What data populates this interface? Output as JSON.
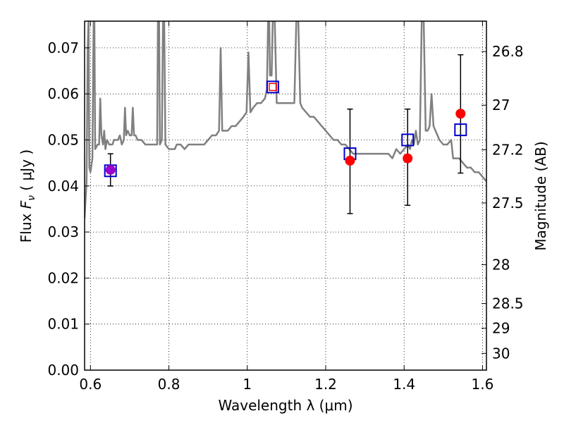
{
  "chart_data": {
    "type": "scatter",
    "title": "",
    "xlabel": "Wavelength  λ (μm)",
    "ylabel": "Flux  F_ν ( μJy )",
    "y2label": "Magnitude (AB)",
    "xlim": [
      0.585,
      1.61
    ],
    "ylim": [
      0.0,
      0.0758
    ],
    "grid": true,
    "grid_style": "dotted",
    "x_ticks": [
      {
        "value": 0.6,
        "label": "0.6"
      },
      {
        "value": 0.8,
        "label": "0.8"
      },
      {
        "value": 1.0,
        "label": "1"
      },
      {
        "value": 1.2,
        "label": "1.2"
      },
      {
        "value": 1.4,
        "label": "1.4"
      },
      {
        "value": 1.6,
        "label": "1.6"
      }
    ],
    "y_ticks": [
      {
        "value": 0.0,
        "label": "0.00"
      },
      {
        "value": 0.01,
        "label": "0.01"
      },
      {
        "value": 0.02,
        "label": "0.02"
      },
      {
        "value": 0.03,
        "label": "0.03"
      },
      {
        "value": 0.04,
        "label": "0.04"
      },
      {
        "value": 0.05,
        "label": "0.05"
      },
      {
        "value": 0.06,
        "label": "0.06"
      },
      {
        "value": 0.07,
        "label": "0.07"
      }
    ],
    "y2_ticks": [
      {
        "value": 26.8,
        "label": "26.8"
      },
      {
        "value": 27.0,
        "label": "27"
      },
      {
        "value": 27.2,
        "label": "27.2"
      },
      {
        "value": 27.5,
        "label": "27.5"
      },
      {
        "value": 28.0,
        "label": "28"
      },
      {
        "value": 28.5,
        "label": "28.5"
      },
      {
        "value": 29.0,
        "label": "29"
      },
      {
        "value": 30.0,
        "label": "30"
      }
    ],
    "colors": {
      "spectrum": "#808080",
      "observed": "#ff0000",
      "model": "#0000cc",
      "model_highlight": "#ff0000",
      "overlap": "#9900cc",
      "errorbar": "#000000"
    },
    "spectrum": [
      [
        0.585,
        0.033
      ],
      [
        0.59,
        0.041
      ],
      [
        0.593,
        0.07
      ],
      [
        0.595,
        0.076
      ],
      [
        0.597,
        0.044
      ],
      [
        0.6,
        0.043
      ],
      [
        0.605,
        0.046
      ],
      [
        0.608,
        0.076
      ],
      [
        0.61,
        0.076
      ],
      [
        0.612,
        0.048
      ],
      [
        0.618,
        0.049
      ],
      [
        0.622,
        0.049
      ],
      [
        0.625,
        0.059
      ],
      [
        0.628,
        0.051
      ],
      [
        0.632,
        0.049
      ],
      [
        0.635,
        0.052
      ],
      [
        0.638,
        0.048
      ],
      [
        0.642,
        0.05
      ],
      [
        0.648,
        0.049
      ],
      [
        0.652,
        0.049
      ],
      [
        0.656,
        0.049
      ],
      [
        0.66,
        0.05
      ],
      [
        0.665,
        0.05
      ],
      [
        0.67,
        0.05
      ],
      [
        0.675,
        0.051
      ],
      [
        0.68,
        0.049
      ],
      [
        0.685,
        0.05
      ],
      [
        0.688,
        0.057
      ],
      [
        0.691,
        0.051
      ],
      [
        0.695,
        0.052
      ],
      [
        0.7,
        0.051
      ],
      [
        0.705,
        0.051
      ],
      [
        0.708,
        0.057
      ],
      [
        0.711,
        0.051
      ],
      [
        0.715,
        0.051
      ],
      [
        0.72,
        0.05
      ],
      [
        0.73,
        0.05
      ],
      [
        0.74,
        0.049
      ],
      [
        0.75,
        0.049
      ],
      [
        0.76,
        0.049
      ],
      [
        0.77,
        0.049
      ],
      [
        0.772,
        0.076
      ],
      [
        0.775,
        0.076
      ],
      [
        0.777,
        0.049
      ],
      [
        0.782,
        0.05
      ],
      [
        0.785,
        0.076
      ],
      [
        0.788,
        0.076
      ],
      [
        0.791,
        0.049
      ],
      [
        0.8,
        0.048
      ],
      [
        0.81,
        0.048
      ],
      [
        0.815,
        0.048
      ],
      [
        0.82,
        0.049
      ],
      [
        0.83,
        0.049
      ],
      [
        0.84,
        0.048
      ],
      [
        0.85,
        0.049
      ],
      [
        0.86,
        0.049
      ],
      [
        0.87,
        0.049
      ],
      [
        0.88,
        0.049
      ],
      [
        0.89,
        0.049
      ],
      [
        0.9,
        0.05
      ],
      [
        0.91,
        0.051
      ],
      [
        0.92,
        0.051
      ],
      [
        0.928,
        0.052
      ],
      [
        0.932,
        0.07
      ],
      [
        0.936,
        0.052
      ],
      [
        0.94,
        0.052
      ],
      [
        0.95,
        0.052
      ],
      [
        0.96,
        0.053
      ],
      [
        0.97,
        0.053
      ],
      [
        0.98,
        0.054
      ],
      [
        0.99,
        0.055
      ],
      [
        0.998,
        0.056
      ],
      [
        1.003,
        0.069
      ],
      [
        1.008,
        0.056
      ],
      [
        1.015,
        0.057
      ],
      [
        1.025,
        0.058
      ],
      [
        1.035,
        0.058
      ],
      [
        1.045,
        0.059
      ],
      [
        1.05,
        0.061
      ],
      [
        1.053,
        0.076
      ],
      [
        1.056,
        0.076
      ],
      [
        1.058,
        0.064
      ],
      [
        1.062,
        0.064
      ],
      [
        1.065,
        0.076
      ],
      [
        1.07,
        0.076
      ],
      [
        1.075,
        0.058
      ],
      [
        1.085,
        0.058
      ],
      [
        1.095,
        0.058
      ],
      [
        1.105,
        0.058
      ],
      [
        1.115,
        0.058
      ],
      [
        1.12,
        0.058
      ],
      [
        1.125,
        0.076
      ],
      [
        1.13,
        0.076
      ],
      [
        1.135,
        0.058
      ],
      [
        1.14,
        0.057
      ],
      [
        1.15,
        0.056
      ],
      [
        1.16,
        0.055
      ],
      [
        1.17,
        0.055
      ],
      [
        1.18,
        0.054
      ],
      [
        1.19,
        0.053
      ],
      [
        1.2,
        0.052
      ],
      [
        1.21,
        0.051
      ],
      [
        1.22,
        0.05
      ],
      [
        1.23,
        0.05
      ],
      [
        1.24,
        0.049
      ],
      [
        1.25,
        0.049
      ],
      [
        1.26,
        0.048
      ],
      [
        1.27,
        0.047
      ],
      [
        1.28,
        0.047
      ],
      [
        1.29,
        0.047
      ],
      [
        1.3,
        0.047
      ],
      [
        1.31,
        0.047
      ],
      [
        1.32,
        0.047
      ],
      [
        1.33,
        0.047
      ],
      [
        1.34,
        0.047
      ],
      [
        1.35,
        0.047
      ],
      [
        1.36,
        0.047
      ],
      [
        1.37,
        0.046
      ],
      [
        1.38,
        0.048
      ],
      [
        1.39,
        0.047
      ],
      [
        1.4,
        0.048
      ],
      [
        1.41,
        0.049
      ],
      [
        1.415,
        0.048
      ],
      [
        1.42,
        0.05
      ],
      [
        1.425,
        0.049
      ],
      [
        1.43,
        0.052
      ],
      [
        1.435,
        0.049
      ],
      [
        1.44,
        0.05
      ],
      [
        1.445,
        0.076
      ],
      [
        1.45,
        0.076
      ],
      [
        1.455,
        0.052
      ],
      [
        1.46,
        0.052
      ],
      [
        1.465,
        0.053
      ],
      [
        1.47,
        0.06
      ],
      [
        1.475,
        0.053
      ],
      [
        1.48,
        0.052
      ],
      [
        1.49,
        0.05
      ],
      [
        1.5,
        0.049
      ],
      [
        1.51,
        0.049
      ],
      [
        1.52,
        0.05
      ],
      [
        1.525,
        0.046
      ],
      [
        1.53,
        0.046
      ],
      [
        1.54,
        0.046
      ],
      [
        1.55,
        0.045
      ],
      [
        1.56,
        0.044
      ],
      [
        1.57,
        0.044
      ],
      [
        1.58,
        0.043
      ],
      [
        1.59,
        0.043
      ],
      [
        1.6,
        0.042
      ],
      [
        1.61,
        0.041
      ]
    ],
    "observed": [
      {
        "x": 0.651,
        "y": 0.0435,
        "yerr_low": 0.04,
        "yerr_high": 0.047
      },
      {
        "x": 1.262,
        "y": 0.0455,
        "yerr_low": 0.034,
        "yerr_high": 0.0567
      },
      {
        "x": 1.409,
        "y": 0.046,
        "yerr_low": 0.0358,
        "yerr_high": 0.0567
      },
      {
        "x": 1.544,
        "y": 0.0557,
        "yerr_low": 0.0428,
        "yerr_high": 0.0685
      }
    ],
    "model": [
      {
        "x": 0.651,
        "y": 0.0433,
        "highlight": false
      },
      {
        "x": 1.065,
        "y": 0.0615,
        "highlight": true
      },
      {
        "x": 1.262,
        "y": 0.047,
        "highlight": false
      },
      {
        "x": 1.409,
        "y": 0.05,
        "highlight": false
      },
      {
        "x": 1.544,
        "y": 0.0522,
        "highlight": false
      }
    ]
  }
}
